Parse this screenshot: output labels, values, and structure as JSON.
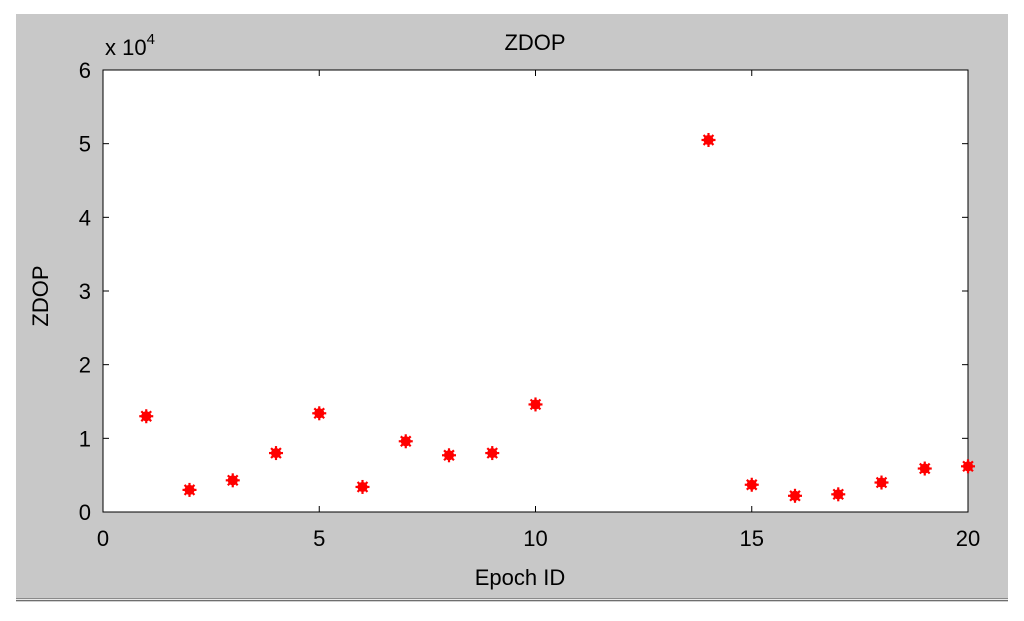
{
  "chart_data": {
    "type": "scatter",
    "title": "ZDOP",
    "xlabel": "Epoch ID",
    "ylabel": "ZDOP",
    "y_multiplier_label": "x 10",
    "y_multiplier_exponent": "4",
    "xlim": [
      0,
      20
    ],
    "ylim": [
      0,
      6
    ],
    "xticks": [
      0,
      5,
      10,
      15,
      20
    ],
    "yticks": [
      0,
      1,
      2,
      3,
      4,
      5,
      6
    ],
    "grid": false,
    "marker_color": "#ff0000",
    "series": [
      {
        "x": [
          1,
          2,
          3,
          4,
          5,
          6,
          7,
          8,
          9,
          10,
          14,
          15,
          16,
          17,
          18,
          19,
          20
        ],
        "y": [
          1.3,
          0.3,
          0.43,
          0.8,
          1.34,
          0.34,
          0.96,
          0.77,
          0.8,
          1.46,
          5.05,
          0.37,
          0.22,
          0.24,
          0.4,
          0.59,
          0.62
        ]
      }
    ]
  }
}
